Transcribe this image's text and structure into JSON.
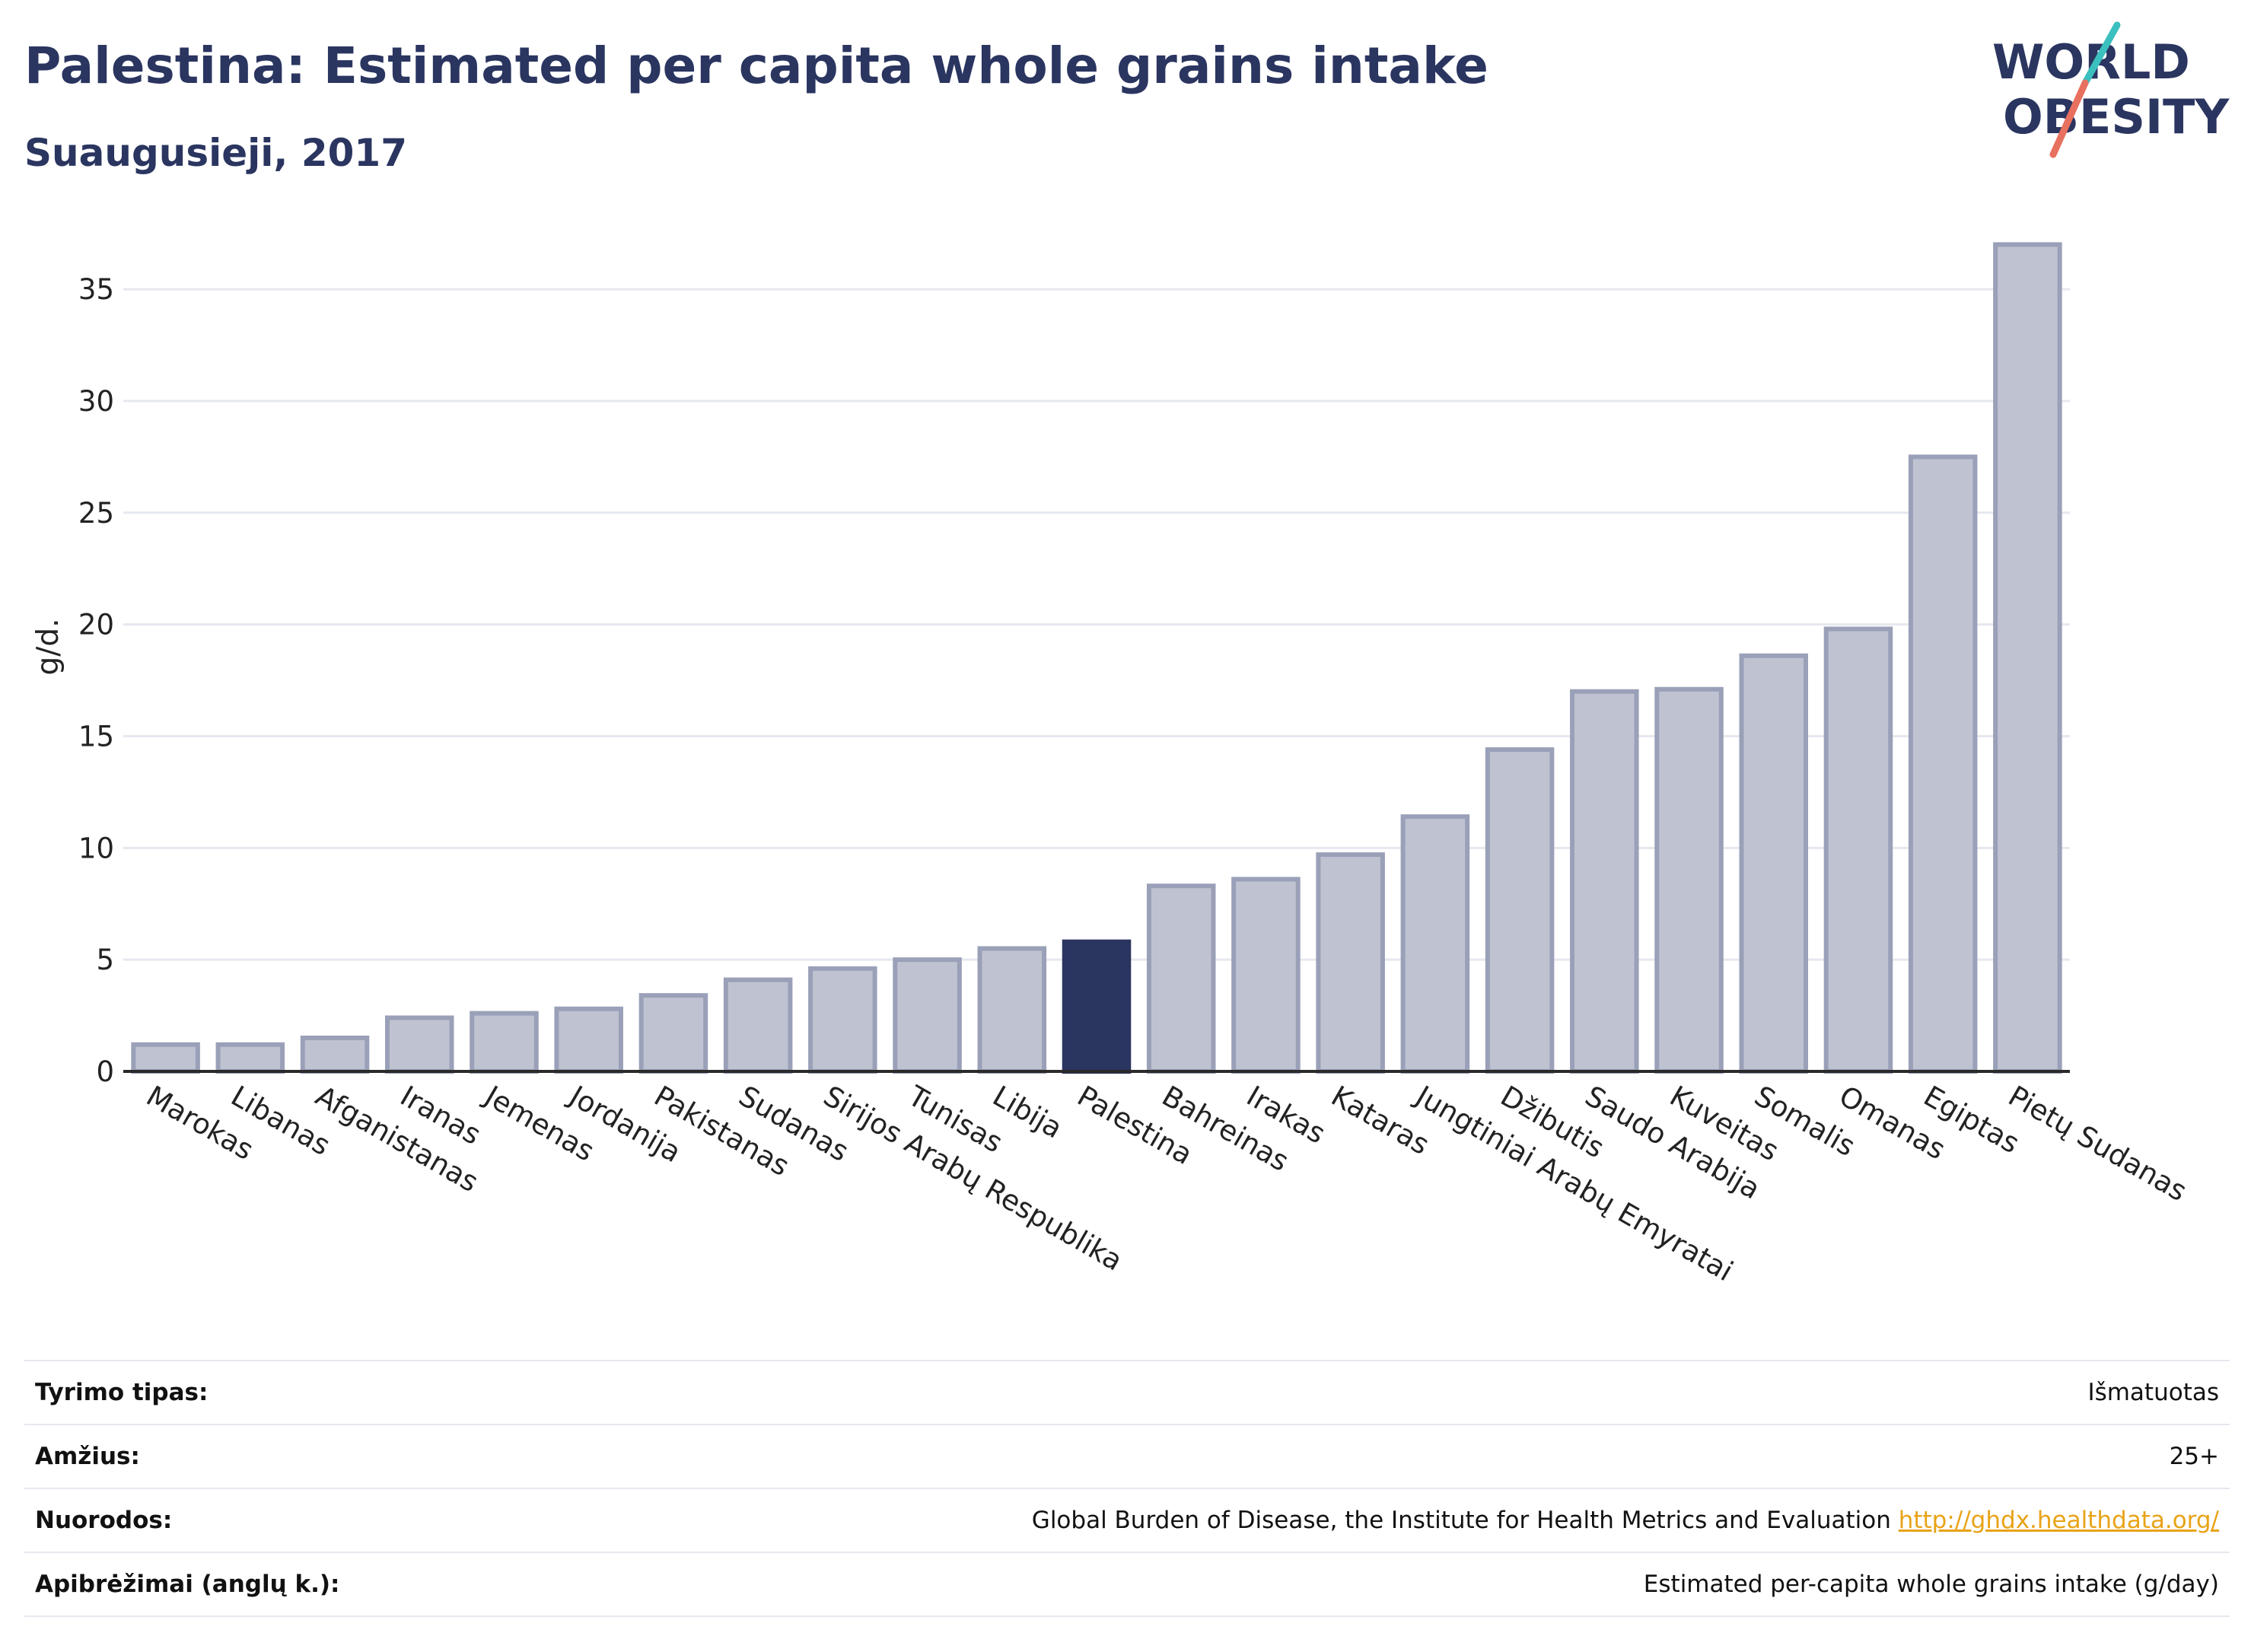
{
  "header": {
    "title": "Palestina: Estimated per capita whole grains intake",
    "subtitle": "Suaugusieji, 2017"
  },
  "logo": {
    "line1": "WORLD",
    "line2": "OBESITY"
  },
  "chart_data": {
    "type": "bar",
    "ylabel": "g/d.",
    "ylim": [
      0,
      38
    ],
    "yticks": [
      0,
      5,
      10,
      15,
      20,
      25,
      30,
      35
    ],
    "grid": true,
    "categories": [
      "Marokas",
      "Libanas",
      "Afganistanas",
      "Iranas",
      "Jemenas",
      "Jordanija",
      "Pakistanas",
      "Sudanas",
      "Sirijos Arabų Respublika",
      "Tunisas",
      "Libija",
      "Palestina",
      "Bahreinas",
      "Irakas",
      "Kataras",
      "Jungtiniai Arabų Emyratai",
      "Džibutis",
      "Saudo Arabija",
      "Kuveitas",
      "Somalis",
      "Omanas",
      "Egiptas",
      "Pietų Sudanas"
    ],
    "values": [
      1.2,
      1.2,
      1.5,
      2.4,
      2.6,
      2.8,
      3.4,
      4.1,
      4.6,
      5.0,
      5.5,
      5.8,
      8.3,
      8.6,
      9.7,
      11.4,
      14.4,
      17.0,
      17.1,
      18.6,
      19.8,
      27.5,
      37.0
    ],
    "highlight": "Palestina",
    "colors": {
      "bar": "#bfc3d1",
      "bar_border": "#9aa0b8",
      "highlight": "#2a3560",
      "grid": "#e6e8ef",
      "axis": "#2a2a2a"
    }
  },
  "info": {
    "rows": [
      {
        "label": "Tyrimo tipas:",
        "value": "Išmatuotas"
      },
      {
        "label": "Amžius:",
        "value": "25+"
      },
      {
        "label": "Nuorodos:",
        "value": "Global Burden of Disease, the Institute for Health Metrics and Evaluation",
        "link": "http://ghdx.healthdata.org/"
      },
      {
        "label": "Apibrėžimai (anglų k.):",
        "value": "Estimated per-capita whole grains intake (g/day)"
      }
    ]
  }
}
